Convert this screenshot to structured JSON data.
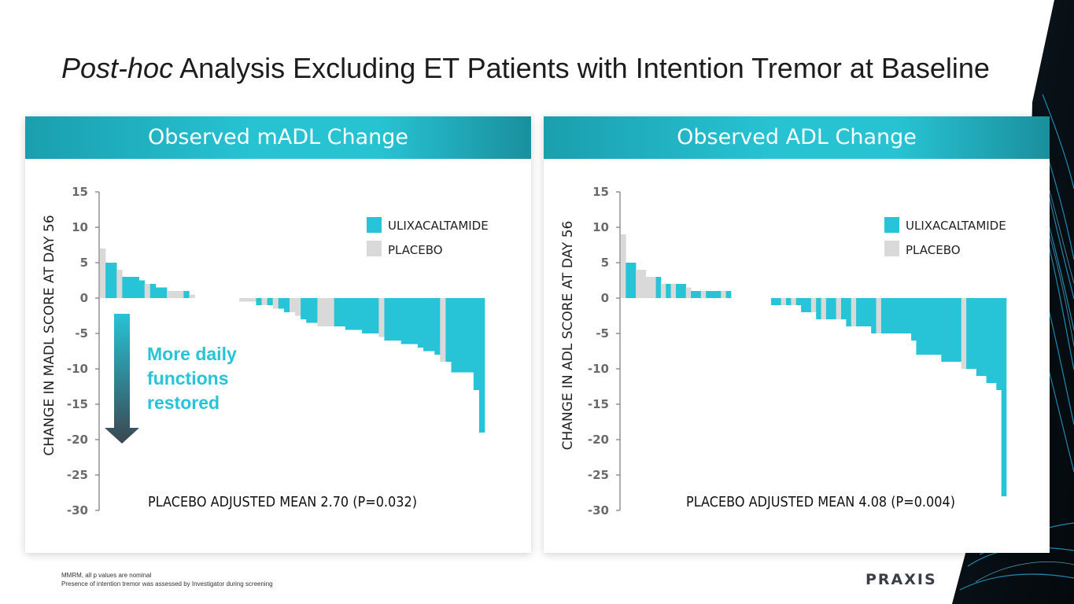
{
  "title": {
    "italic": "Post-hoc",
    "rest": " Analysis Excluding ET Patients with Intention Tremor at Baseline"
  },
  "colors": {
    "ulix": "#27c3d6",
    "placebo": "#d9d9d9",
    "axis": "#777777",
    "arrow_top": "#27c3d6",
    "arrow_bottom": "#3b4650"
  },
  "annotation": {
    "line1": "More daily",
    "line2": "functions",
    "line3": "restored"
  },
  "chart_data": [
    {
      "type": "bar",
      "title": "Observed mADL Change",
      "ylabel": "CHANGE IN MADL SCORE AT DAY 56",
      "ylim": [
        -30,
        15
      ],
      "yticks": [
        "15",
        "10",
        "5",
        "0",
        "-5",
        "-10",
        "-15",
        "-20",
        "-25",
        "-30"
      ],
      "legend": [
        "ULIXACALTAMIDE",
        "PLACEBO"
      ],
      "footer": "PLACEBO ADJUSTED MEAN 2.70 (P=0.032)",
      "bars": [
        {
          "g": "p",
          "v": 7
        },
        {
          "g": "u",
          "v": 5
        },
        {
          "g": "u",
          "v": 5
        },
        {
          "g": "p",
          "v": 4
        },
        {
          "g": "u",
          "v": 3
        },
        {
          "g": "u",
          "v": 3
        },
        {
          "g": "u",
          "v": 3
        },
        {
          "g": "u",
          "v": 2.5
        },
        {
          "g": "p",
          "v": 2
        },
        {
          "g": "u",
          "v": 2
        },
        {
          "g": "u",
          "v": 1.5
        },
        {
          "g": "u",
          "v": 1.5
        },
        {
          "g": "p",
          "v": 1
        },
        {
          "g": "p",
          "v": 1
        },
        {
          "g": "p",
          "v": 1
        },
        {
          "g": "u",
          "v": 1
        },
        {
          "g": "p",
          "v": 0.5
        },
        {
          "g": "p",
          "v": 0
        },
        {
          "g": "p",
          "v": 0
        },
        {
          "g": "p",
          "v": 0
        },
        {
          "g": "p",
          "v": 0
        },
        {
          "g": "p",
          "v": 0
        },
        {
          "g": "p",
          "v": 0
        },
        {
          "g": "p",
          "v": 0
        },
        {
          "g": "p",
          "v": 0
        },
        {
          "g": "p",
          "v": -0.5
        },
        {
          "g": "p",
          "v": -0.5
        },
        {
          "g": "p",
          "v": -0.5
        },
        {
          "g": "u",
          "v": -1
        },
        {
          "g": "p",
          "v": -1
        },
        {
          "g": "u",
          "v": -1
        },
        {
          "g": "p",
          "v": -1.5
        },
        {
          "g": "u",
          "v": -1.5
        },
        {
          "g": "u",
          "v": -2
        },
        {
          "g": "p",
          "v": -2
        },
        {
          "g": "p",
          "v": -2.5
        },
        {
          "g": "u",
          "v": -3
        },
        {
          "g": "u",
          "v": -3.5
        },
        {
          "g": "u",
          "v": -3.5
        },
        {
          "g": "p",
          "v": -4
        },
        {
          "g": "p",
          "v": -4
        },
        {
          "g": "p",
          "v": -4
        },
        {
          "g": "u",
          "v": -4
        },
        {
          "g": "u",
          "v": -4
        },
        {
          "g": "u",
          "v": -4.5
        },
        {
          "g": "u",
          "v": -4.5
        },
        {
          "g": "u",
          "v": -4.5
        },
        {
          "g": "u",
          "v": -5
        },
        {
          "g": "u",
          "v": -5
        },
        {
          "g": "u",
          "v": -5
        },
        {
          "g": "p",
          "v": -5.5
        },
        {
          "g": "u",
          "v": -6
        },
        {
          "g": "u",
          "v": -6
        },
        {
          "g": "u",
          "v": -6
        },
        {
          "g": "u",
          "v": -6.5
        },
        {
          "g": "u",
          "v": -6.5
        },
        {
          "g": "u",
          "v": -6.5
        },
        {
          "g": "u",
          "v": -7
        },
        {
          "g": "u",
          "v": -7.5
        },
        {
          "g": "u",
          "v": -7.5
        },
        {
          "g": "u",
          "v": -8
        },
        {
          "g": "p",
          "v": -9
        },
        {
          "g": "u",
          "v": -9
        },
        {
          "g": "u",
          "v": -10.5
        },
        {
          "g": "u",
          "v": -10.5
        },
        {
          "g": "u",
          "v": -10.5
        },
        {
          "g": "u",
          "v": -10.5
        },
        {
          "g": "u",
          "v": -13
        },
        {
          "g": "u",
          "v": -19
        }
      ]
    },
    {
      "type": "bar",
      "title": "Observed ADL Change",
      "ylabel": "CHANGE IN ADL SCORE AT DAY 56",
      "ylim": [
        -30,
        15
      ],
      "yticks": [
        "15",
        "10",
        "5",
        "0",
        "-5",
        "-10",
        "-15",
        "-20",
        "-25",
        "-30"
      ],
      "legend": [
        "ULIXACALTAMIDE",
        "PLACEBO"
      ],
      "footer": "PLACEBO ADJUSTED MEAN 4.08 (P=0.004)",
      "bars": [
        {
          "g": "p",
          "v": 9
        },
        {
          "g": "u",
          "v": 5
        },
        {
          "g": "u",
          "v": 5
        },
        {
          "g": "p",
          "v": 4
        },
        {
          "g": "p",
          "v": 4
        },
        {
          "g": "p",
          "v": 3
        },
        {
          "g": "p",
          "v": 3
        },
        {
          "g": "u",
          "v": 3
        },
        {
          "g": "p",
          "v": 2
        },
        {
          "g": "u",
          "v": 2
        },
        {
          "g": "p",
          "v": 2
        },
        {
          "g": "u",
          "v": 2
        },
        {
          "g": "u",
          "v": 2
        },
        {
          "g": "p",
          "v": 1.5
        },
        {
          "g": "u",
          "v": 1
        },
        {
          "g": "u",
          "v": 1
        },
        {
          "g": "p",
          "v": 1
        },
        {
          "g": "u",
          "v": 1
        },
        {
          "g": "u",
          "v": 1
        },
        {
          "g": "u",
          "v": 1
        },
        {
          "g": "p",
          "v": 1
        },
        {
          "g": "u",
          "v": 1
        },
        {
          "g": "p",
          "v": 0
        },
        {
          "g": "p",
          "v": 0
        },
        {
          "g": "p",
          "v": 0
        },
        {
          "g": "p",
          "v": 0
        },
        {
          "g": "p",
          "v": 0
        },
        {
          "g": "p",
          "v": 0
        },
        {
          "g": "p",
          "v": 0
        },
        {
          "g": "p",
          "v": 0
        },
        {
          "g": "u",
          "v": -1
        },
        {
          "g": "u",
          "v": -1
        },
        {
          "g": "p",
          "v": -1
        },
        {
          "g": "u",
          "v": -1
        },
        {
          "g": "p",
          "v": -1
        },
        {
          "g": "u",
          "v": -1
        },
        {
          "g": "u",
          "v": -2
        },
        {
          "g": "u",
          "v": -2
        },
        {
          "g": "p",
          "v": -2
        },
        {
          "g": "u",
          "v": -3
        },
        {
          "g": "p",
          "v": -3
        },
        {
          "g": "u",
          "v": -3
        },
        {
          "g": "u",
          "v": -3
        },
        {
          "g": "p",
          "v": -3
        },
        {
          "g": "u",
          "v": -3
        },
        {
          "g": "u",
          "v": -4
        },
        {
          "g": "p",
          "v": -4
        },
        {
          "g": "u",
          "v": -4
        },
        {
          "g": "u",
          "v": -4
        },
        {
          "g": "u",
          "v": -4
        },
        {
          "g": "u",
          "v": -5
        },
        {
          "g": "p",
          "v": -5
        },
        {
          "g": "u",
          "v": -5
        },
        {
          "g": "u",
          "v": -5
        },
        {
          "g": "u",
          "v": -5
        },
        {
          "g": "u",
          "v": -5
        },
        {
          "g": "u",
          "v": -5
        },
        {
          "g": "u",
          "v": -5
        },
        {
          "g": "u",
          "v": -6
        },
        {
          "g": "u",
          "v": -8
        },
        {
          "g": "u",
          "v": -8
        },
        {
          "g": "u",
          "v": -8
        },
        {
          "g": "u",
          "v": -8
        },
        {
          "g": "u",
          "v": -8
        },
        {
          "g": "u",
          "v": -9
        },
        {
          "g": "u",
          "v": -9
        },
        {
          "g": "u",
          "v": -9
        },
        {
          "g": "u",
          "v": -9
        },
        {
          "g": "p",
          "v": -10
        },
        {
          "g": "u",
          "v": -10
        },
        {
          "g": "u",
          "v": -10
        },
        {
          "g": "u",
          "v": -11
        },
        {
          "g": "u",
          "v": -11
        },
        {
          "g": "u",
          "v": -12
        },
        {
          "g": "u",
          "v": -12
        },
        {
          "g": "u",
          "v": -13
        },
        {
          "g": "u",
          "v": -28
        }
      ]
    }
  ],
  "footnotes": [
    "MMRM, all p values are nominal",
    "Presence of intention tremor was assessed by Investigator during screening"
  ],
  "logo": "PRAXIS"
}
